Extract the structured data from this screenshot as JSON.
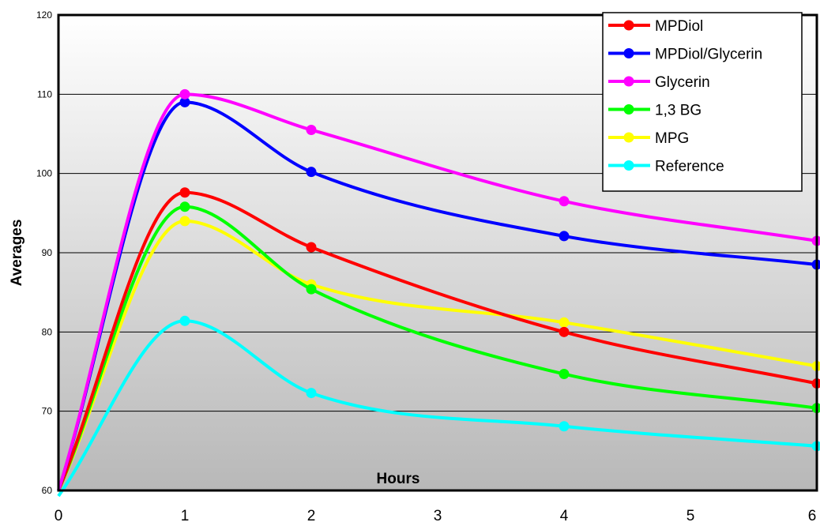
{
  "chart_data": {
    "type": "line",
    "title": "",
    "xlabel": "Hours",
    "ylabel": "Averages",
    "xlim": [
      0,
      6
    ],
    "ylim": [
      60,
      120
    ],
    "x_ticks": [
      "0",
      "1",
      "2",
      "3",
      "4",
      "5",
      "6"
    ],
    "y_ticks": [
      "60",
      "70",
      "80",
      "90",
      "100",
      "110",
      "120"
    ],
    "grid": "horizontal",
    "legend_position": "top-right",
    "x": [
      0,
      1,
      2,
      4,
      6
    ],
    "series": [
      {
        "name": "MPDiol",
        "color": "#ff0000",
        "values": [
          60,
          97.6,
          90.7,
          80,
          73.5
        ]
      },
      {
        "name": "MPDiol/Glycerin",
        "color": "#0000ff",
        "values": [
          60,
          109,
          100.2,
          92.1,
          88.5
        ]
      },
      {
        "name": "Glycerin",
        "color": "#ff00ff",
        "values": [
          60,
          110,
          105.5,
          96.5,
          91.5
        ]
      },
      {
        "name": "1,3 BG",
        "color": "#00ff00",
        "values": [
          60,
          95.8,
          85.4,
          74.7,
          70.4
        ]
      },
      {
        "name": "MPG",
        "color": "#ffff00",
        "values": [
          60,
          94,
          86,
          81.2,
          75.7
        ]
      },
      {
        "name": "Reference",
        "color": "#00ffff",
        "values": [
          59.3,
          81.4,
          72.3,
          68.1,
          65.6
        ]
      }
    ]
  }
}
